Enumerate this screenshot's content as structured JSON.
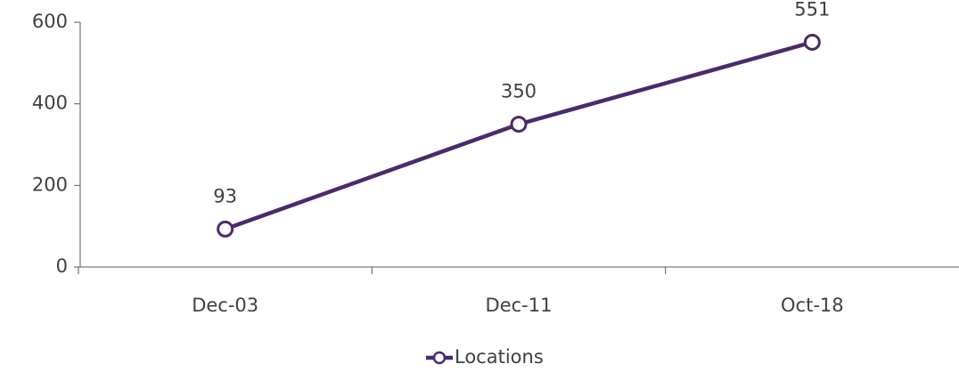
{
  "chart_data": {
    "type": "line",
    "categories": [
      "Dec-03",
      "Dec-11",
      "Oct-18"
    ],
    "series": [
      {
        "name": "Locations",
        "color": "#4b2a6b",
        "values": [
          93,
          350,
          551
        ]
      }
    ],
    "ylim": [
      0,
      600
    ],
    "yticks": [
      0,
      200,
      400,
      600
    ],
    "data_labels": true,
    "legend": "bottom"
  }
}
